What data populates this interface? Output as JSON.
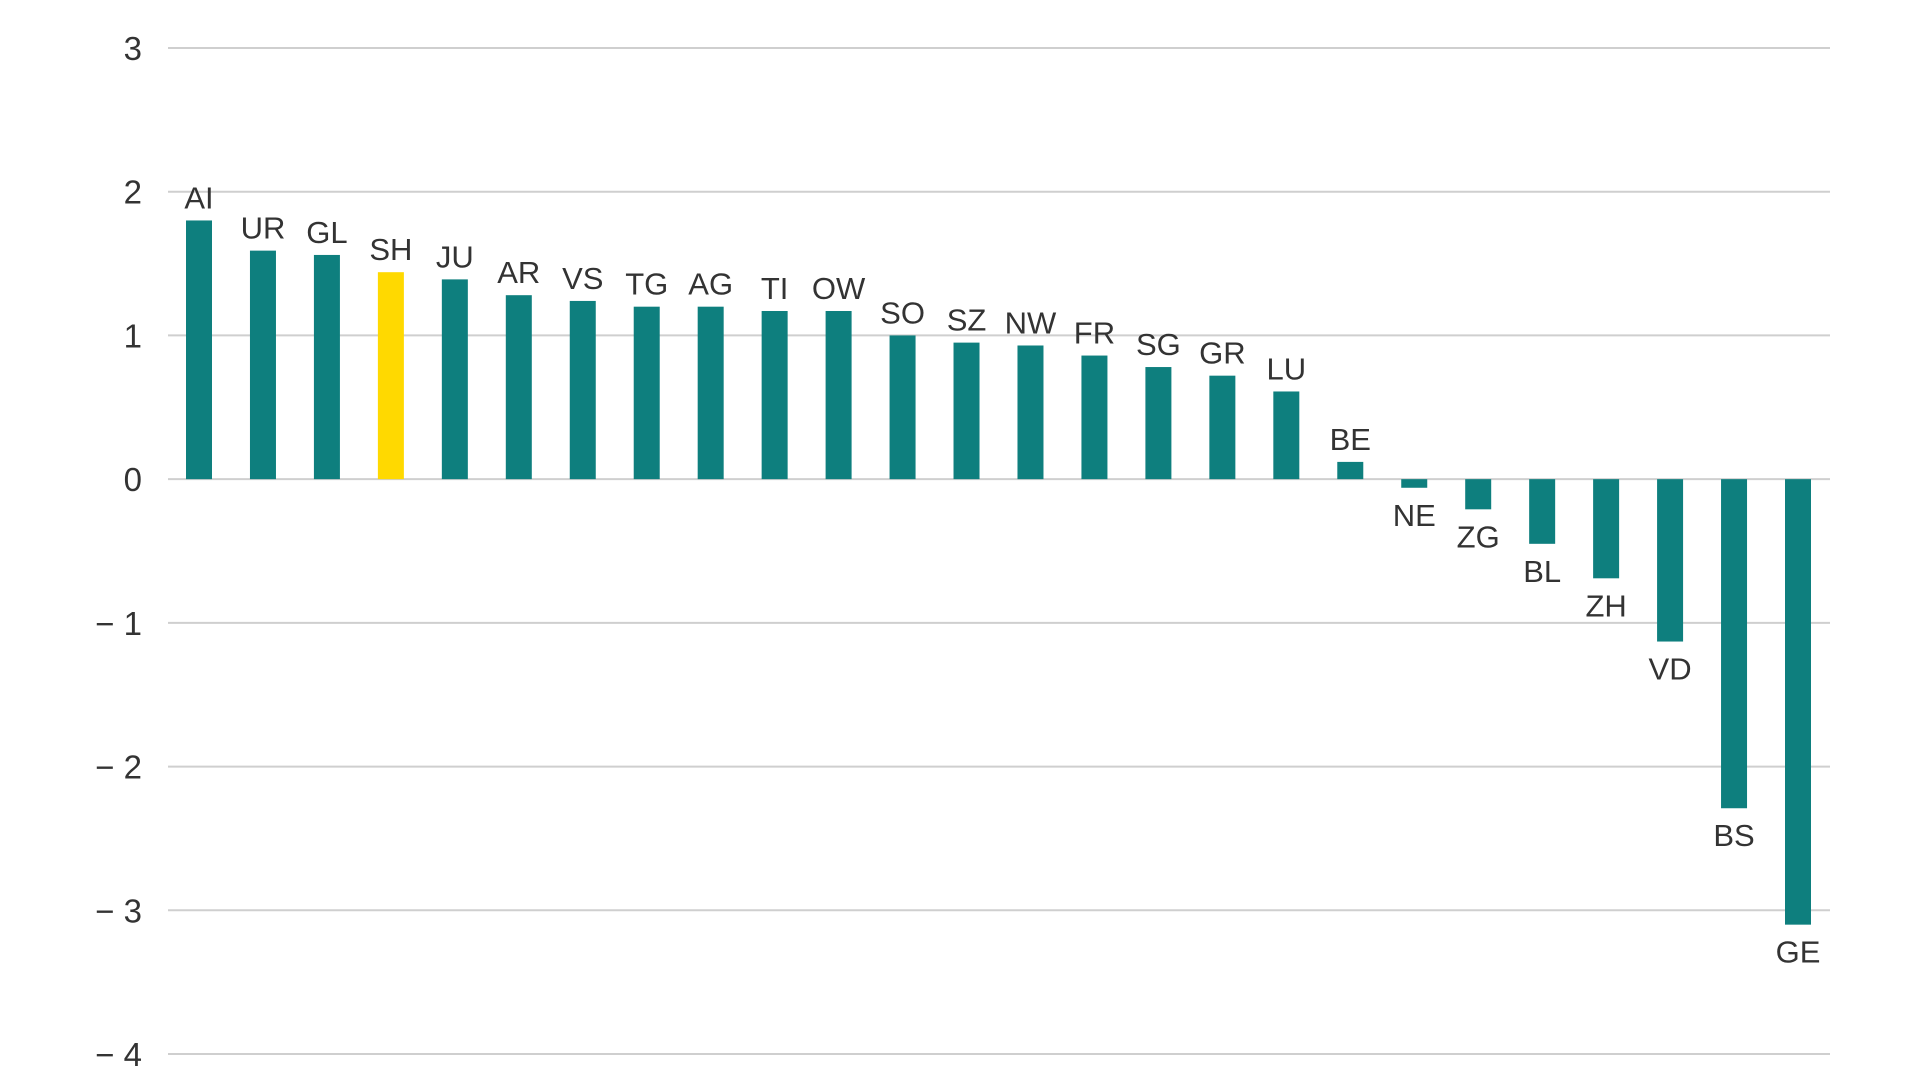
{
  "colors": {
    "bar": "#0e7f7e",
    "highlight": "#ffd900",
    "grid": "#cfcfcf",
    "text": "#333333",
    "background": "#ffffff"
  },
  "chart_data": {
    "type": "bar",
    "orientation": "vertical",
    "title": "",
    "xlabel": "",
    "ylabel": "",
    "ylim": [
      -4,
      3
    ],
    "yticks": [
      3,
      2,
      1,
      0,
      -1,
      -2,
      -3,
      -4
    ],
    "ytick_labels": [
      "3",
      "2",
      "1",
      "0",
      "− 1",
      "− 2",
      "− 3",
      "− 4"
    ],
    "grid": true,
    "categories": [
      "AI",
      "UR",
      "GL",
      "SH",
      "JU",
      "AR",
      "VS",
      "TG",
      "AG",
      "TI",
      "OW",
      "SO",
      "SZ",
      "NW",
      "FR",
      "SG",
      "GR",
      "LU",
      "BE",
      "NE",
      "ZG",
      "BL",
      "ZH",
      "VD",
      "BS",
      "GE"
    ],
    "values": [
      1.8,
      1.59,
      1.56,
      1.44,
      1.39,
      1.28,
      1.24,
      1.2,
      1.2,
      1.17,
      1.17,
      1.0,
      0.95,
      0.93,
      0.86,
      0.78,
      0.72,
      0.61,
      0.12,
      -0.06,
      -0.21,
      -0.45,
      -0.69,
      -1.13,
      -2.29,
      -3.1
    ],
    "highlighted": [
      "SH"
    ],
    "category_label_position": "above positive bars, below negative bars"
  }
}
